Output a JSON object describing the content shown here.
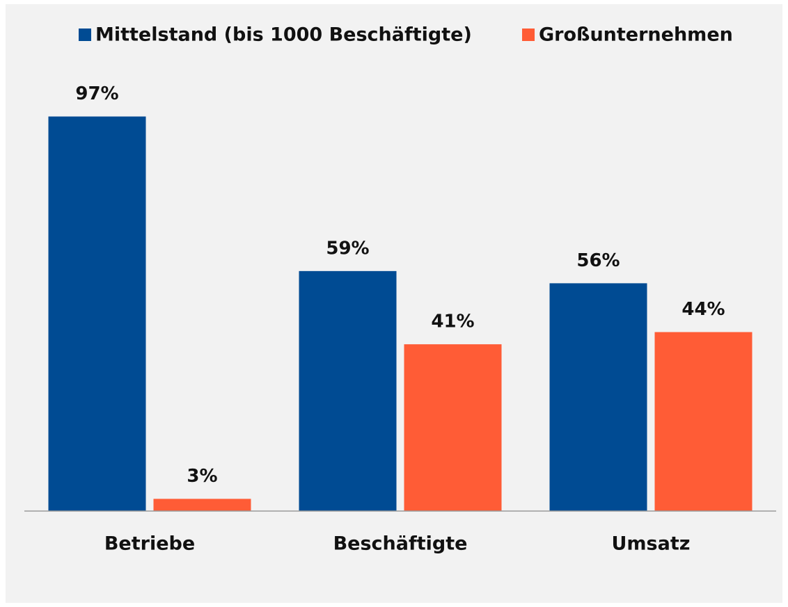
{
  "chart_data": {
    "type": "bar",
    "categories": [
      "Betriebe",
      "Beschäftigte",
      "Umsatz"
    ],
    "series": [
      {
        "name": "Mittelstand (bis 1000 Beschäftigte)",
        "color": "#004b93",
        "values": [
          97,
          59,
          56
        ],
        "value_labels": [
          "97%",
          "59%",
          "56%"
        ]
      },
      {
        "name": "Großunternehmen",
        "color": "#ff5c36",
        "values": [
          3,
          41,
          44
        ],
        "value_labels": [
          "3%",
          "41%",
          "44%"
        ]
      }
    ],
    "ylim": [
      0,
      100
    ]
  }
}
